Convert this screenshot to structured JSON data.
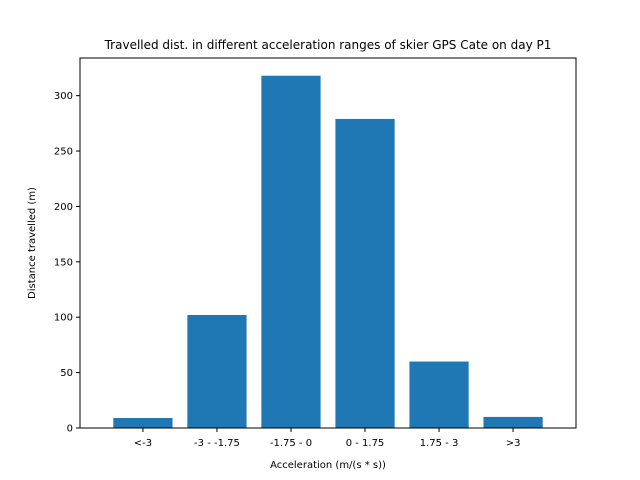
{
  "chart_data": {
    "type": "bar",
    "title": "Travelled dist. in different acceleration ranges of skier GPS Cate on day P1",
    "xlabel": "Acceleration (m/(s * s))",
    "ylabel": "Distance travelled (m)",
    "categories": [
      "<-3",
      "-3 - -1.75",
      "-1.75 - 0",
      "0 - 1.75",
      "1.75 - 3",
      ">3"
    ],
    "values": [
      9,
      102,
      318,
      279,
      60,
      10
    ],
    "ylim": [
      0,
      334
    ],
    "yticks": [
      0,
      50,
      100,
      150,
      200,
      250,
      300
    ],
    "bar_color": "#1f77b4",
    "grid": false,
    "legend": "none"
  }
}
